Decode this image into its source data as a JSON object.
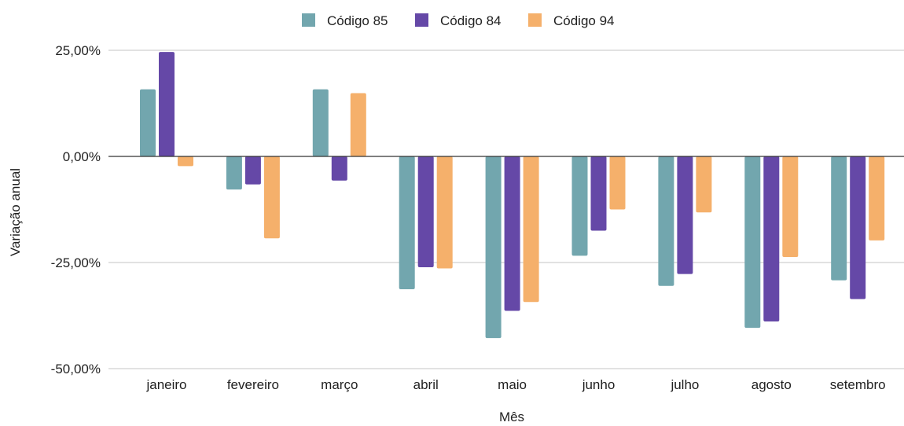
{
  "chart_data": {
    "type": "bar",
    "title": "",
    "xlabel": "Mês",
    "ylabel": "Variação anual",
    "categories": [
      "janeiro",
      "fevereiro",
      "março",
      "abril",
      "maio",
      "junho",
      "julho",
      "agosto",
      "setembro"
    ],
    "series": [
      {
        "name": "Código 85",
        "color": "#72a6ae",
        "values": [
          15.8,
          -7.8,
          15.8,
          -31.3,
          -42.8,
          -23.4,
          -30.5,
          -40.4,
          -29.2
        ]
      },
      {
        "name": "Código 84",
        "color": "#6548a7",
        "values": [
          24.6,
          -6.6,
          -5.7,
          -26.1,
          -36.4,
          -17.5,
          -27.7,
          -38.9,
          -33.6
        ]
      },
      {
        "name": "Código 94",
        "color": "#f5b06b",
        "values": [
          -2.3,
          -19.3,
          14.9,
          -26.4,
          -34.3,
          -12.5,
          -13.2,
          -23.7,
          -19.8
        ]
      }
    ],
    "ylim": [
      -50,
      25
    ],
    "yticks": [
      {
        "value": 25,
        "label": "25,00%"
      },
      {
        "value": 0,
        "label": "0,00%"
      },
      {
        "value": -25,
        "label": "-25,00%"
      },
      {
        "value": -50,
        "label": "-50,00%"
      }
    ],
    "grid": true,
    "legend_position": "top-center"
  }
}
